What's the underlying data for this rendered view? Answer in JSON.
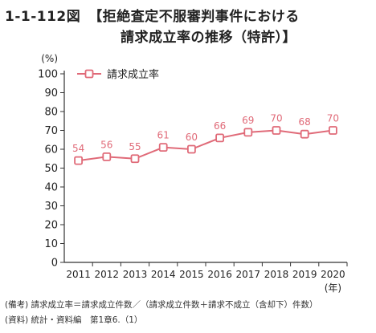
{
  "figure": {
    "number": "1-1-112図",
    "title_line1": "【拒絶査定不服審判事件における",
    "title_line2": "請求成立率の推移（特許）】"
  },
  "notes": [
    "(備考) 請求成立率＝請求成立件数／（請求成立件数＋請求不成立（含却下）件数）",
    "(資料) 統計・資料編　第1章6.（1）"
  ],
  "colors": {
    "series": "#e06a78",
    "axis": "#333333"
  },
  "chart_data": {
    "type": "line",
    "x": [
      "2011",
      "2012",
      "2013",
      "2014",
      "2015",
      "2016",
      "2017",
      "2018",
      "2019",
      "2020"
    ],
    "series": [
      {
        "name": "請求成立率",
        "values": [
          54,
          56,
          55,
          61,
          60,
          66,
          69,
          70,
          68,
          70
        ]
      }
    ],
    "data_labels": [
      "54",
      "56",
      "55",
      "61",
      "60",
      "66",
      "69",
      "70",
      "68",
      "70"
    ],
    "ylabel": "(%)",
    "xlabel": "(年)",
    "ylim": [
      0,
      100
    ],
    "yticks": [
      0,
      10,
      20,
      30,
      40,
      50,
      60,
      70,
      80,
      90,
      100
    ],
    "grid": false,
    "legend": "top-left"
  }
}
